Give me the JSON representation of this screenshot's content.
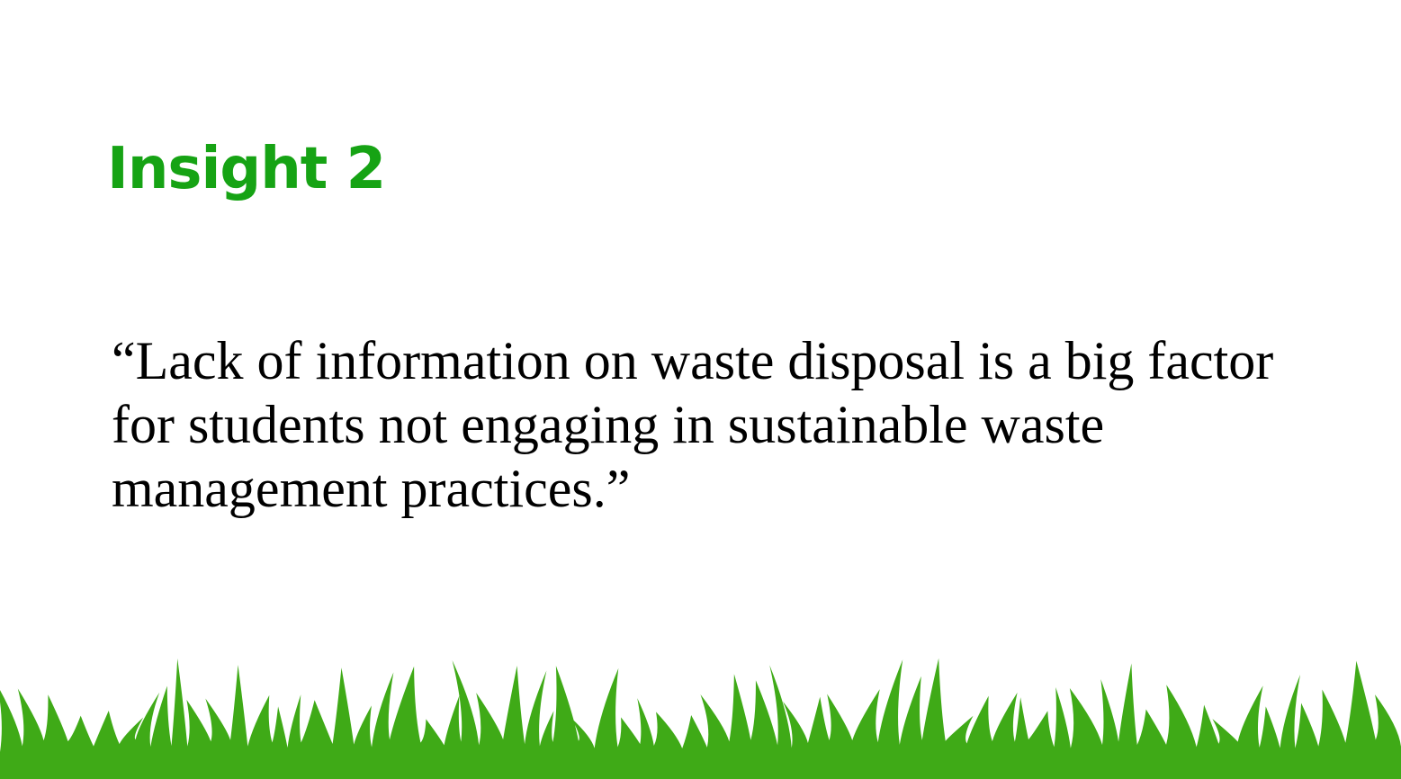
{
  "slide": {
    "title": "Insight 2",
    "quote": "“Lack of information on waste disposal is a big factor for students not engaging in sustainable waste management practices.”"
  },
  "colors": {
    "title": "#16a314",
    "grass": "#3faa17",
    "background": "#ffffff",
    "text": "#000000"
  },
  "decor": {
    "grass": "grass-border-illustration"
  }
}
